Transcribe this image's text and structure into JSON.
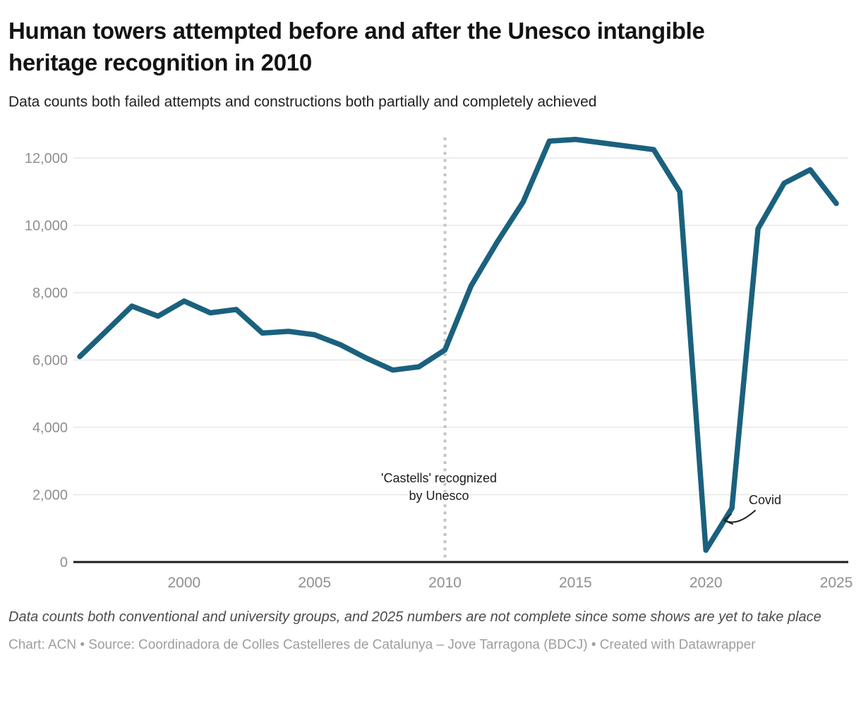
{
  "header": {
    "title": "Human towers attempted before and after the Unesco intangible heritage recognition in 2010",
    "subtitle": "Data counts both failed attempts and constructions both partially and completely achieved"
  },
  "annotations": {
    "castells_line1": "'Castells' recognized",
    "castells_line2": "by Unesco",
    "covid": "Covid"
  },
  "footer": {
    "footnote": "Data counts both conventional and university groups, and 2025 numbers are not complete since some shows are yet to take place",
    "credits": "Chart: ACN • Source: Coordinadora de Colles Castelleres de Catalunya – Jove Tarragona (BDCJ) • Created with Datawrapper"
  },
  "chart_data": {
    "type": "line",
    "title": "Human towers attempted before and after the Unesco intangible heritage recognition in 2010",
    "subtitle": "Data counts both failed attempts and constructions both partially and completely achieved",
    "xlabel": "",
    "ylabel": "",
    "xlim": [
      1996,
      2025
    ],
    "ylim": [
      0,
      12800
    ],
    "grid": "horizontal",
    "legend": "none",
    "line_color": "#1a617e",
    "grid_color": "#e7e7e7",
    "axis_label_color": "#8f8f8f",
    "baseline_color": "#1c1c1c",
    "event_line": {
      "year": 2010,
      "style": "dotted",
      "color": "#c4c4c4"
    },
    "x": [
      1996,
      1997,
      1998,
      1999,
      2000,
      2001,
      2002,
      2003,
      2004,
      2005,
      2006,
      2007,
      2008,
      2009,
      2010,
      2011,
      2012,
      2013,
      2014,
      2015,
      2016,
      2017,
      2018,
      2019,
      2020,
      2021,
      2022,
      2023,
      2024,
      2025
    ],
    "series": [
      {
        "name": "Human towers attempted",
        "values": [
          6100,
          6850,
          7600,
          7300,
          7750,
          7400,
          7500,
          6800,
          6850,
          6750,
          6450,
          6050,
          5700,
          5800,
          6300,
          8200,
          9500,
          10700,
          12500,
          12550,
          12450,
          12350,
          12250,
          11000,
          350,
          1600,
          9900,
          11250,
          11650,
          10650
        ]
      }
    ],
    "x_ticks": [
      {
        "value": 2000,
        "label": "2000"
      },
      {
        "value": 2005,
        "label": "2005"
      },
      {
        "value": 2010,
        "label": "2010"
      },
      {
        "value": 2015,
        "label": "2015"
      },
      {
        "value": 2020,
        "label": "2020"
      },
      {
        "value": 2025,
        "label": "2025"
      }
    ],
    "y_ticks": [
      {
        "value": 0,
        "label": "0"
      },
      {
        "value": 2000,
        "label": "2,000"
      },
      {
        "value": 4000,
        "label": "4,000"
      },
      {
        "value": 6000,
        "label": "6,000"
      },
      {
        "value": 8000,
        "label": "8,000"
      },
      {
        "value": 10000,
        "label": "10,000"
      },
      {
        "value": 12000,
        "label": "12,000"
      }
    ]
  }
}
